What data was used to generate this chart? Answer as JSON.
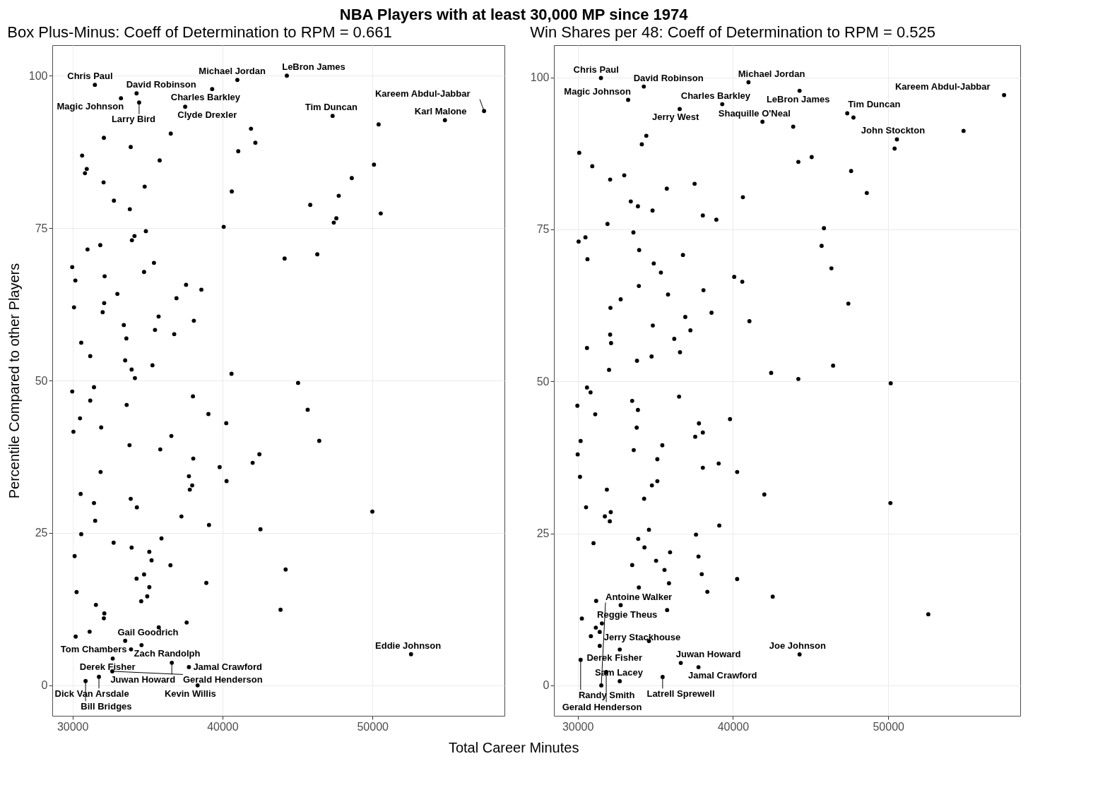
{
  "chart_data": [
    {
      "type": "scatter",
      "title": "NBA Players with at least 30,000 MP since 1974",
      "subtitle": "Box Plus-Minus: Coeff of Determination to RPM = 0.661",
      "xlabel": "Total Career Minutes",
      "ylabel": "Percentile Compared to other Players",
      "color": "#000000",
      "marker": "circle",
      "grid": true,
      "xlim": [
        28650,
        58800
      ],
      "ylim": [
        -5,
        105
      ],
      "xticks": [
        30000,
        40000,
        50000
      ],
      "yticks": [
        0,
        25,
        50,
        75,
        100
      ],
      "x": [
        31490,
        33230,
        34270,
        34440,
        40990,
        39310,
        44290,
        37510,
        47340,
        54830,
        57440,
        41900,
        42190,
        32090,
        33880,
        36550,
        41050,
        30640,
        30950,
        30830,
        35810,
        50410,
        50100,
        48620,
        47750,
        45850,
        47590,
        47420,
        50550,
        40620,
        40080,
        32070,
        34810,
        32760,
        33820,
        34890,
        34130,
        33960,
        31850,
        31000,
        29980,
        30190,
        32140,
        34770,
        35430,
        44140,
        46320,
        32990,
        32110,
        32010,
        30100,
        37570,
        38590,
        36930,
        33420,
        35740,
        38090,
        35500,
        36780,
        33590,
        30580,
        31180,
        33510,
        33940,
        35330,
        40600,
        34160,
        45040,
        29980,
        31430,
        31180,
        33610,
        38030,
        30500,
        31910,
        30060,
        39060,
        40250,
        45680,
        46450,
        36590,
        33800,
        35850,
        38050,
        42460,
        42010,
        39810,
        40270,
        37760,
        37980,
        37820,
        31870,
        30540,
        31430,
        33880,
        34290,
        31510,
        37260,
        39100,
        42530,
        49990,
        30580,
        35930,
        32740,
        33940,
        35120,
        35270,
        30140,
        36530,
        44210,
        34270,
        34770,
        38920,
        35120,
        34980,
        34580,
        30270,
        31560,
        43870,
        32120,
        32090,
        37610,
        35750,
        30210,
        31140,
        33510,
        34600,
        36620,
        37760,
        38340,
        52570,
        32680,
        33900,
        31760,
        32650,
        30870
      ],
      "values": [
        98.5,
        96.3,
        97.1,
        95.6,
        99.3,
        97.8,
        100,
        94.9,
        93.4,
        92.7,
        94.2,
        91.3,
        89.0,
        89.8,
        88.3,
        90.5,
        87.6,
        86.9,
        84.7,
        84.0,
        86.1,
        92.0,
        85.4,
        83.2,
        80.3,
        78.8,
        76.6,
        75.9,
        77.4,
        81.0,
        75.2,
        82.5,
        81.8,
        79.5,
        78.1,
        74.5,
        73.7,
        73.0,
        72.2,
        71.5,
        68.6,
        66.4,
        67.1,
        67.8,
        69.3,
        70.0,
        70.7,
        64.2,
        62.7,
        61.2,
        62.0,
        65.7,
        64.9,
        63.5,
        59.1,
        60.5,
        59.8,
        58.3,
        57.6,
        56.9,
        56.2,
        54.0,
        53.3,
        51.8,
        52.5,
        51.1,
        50.4,
        49.6,
        48.2,
        48.9,
        46.7,
        46.0,
        47.4,
        43.8,
        42.3,
        41.6,
        44.5,
        43.0,
        45.2,
        40.1,
        40.9,
        39.4,
        38.7,
        37.2,
        37.9,
        36.5,
        35.8,
        33.5,
        34.3,
        32.8,
        32.1,
        35.0,
        31.4,
        29.9,
        30.6,
        29.2,
        27.0,
        27.7,
        26.3,
        25.6,
        28.5,
        24.8,
        24.1,
        23.4,
        22.6,
        21.9,
        20.5,
        21.2,
        19.7,
        19.0,
        17.5,
        18.2,
        16.8,
        16.1,
        14.6,
        13.8,
        15.3,
        13.2,
        12.4,
        11.8,
        11.0,
        10.3,
        9.5,
        8.0,
        8.8,
        7.3,
        6.6,
        3.7,
        3.0,
        0.0,
        5.1,
        4.4,
        5.9,
        1.4,
        2.3,
        0.7
      ],
      "annotations": [
        {
          "text": "Chris Paul",
          "x": 31490,
          "y": 98.5
        },
        {
          "text": "Magic Johnson",
          "x": 33230,
          "y": 96.3
        },
        {
          "text": "David Robinson",
          "x": 34270,
          "y": 97.1
        },
        {
          "text": "Larry Bird",
          "x": 34440,
          "y": 95.6
        },
        {
          "text": "Michael Jordan",
          "x": 40990,
          "y": 99.3
        },
        {
          "text": "Charles Barkley",
          "x": 39310,
          "y": 97.8
        },
        {
          "text": "LeBron James",
          "x": 44290,
          "y": 100
        },
        {
          "text": "Clyde Drexler",
          "x": 37510,
          "y": 94.9
        },
        {
          "text": "Tim Duncan",
          "x": 47340,
          "y": 93.4
        },
        {
          "text": "Karl Malone",
          "x": 54830,
          "y": 92.7
        },
        {
          "text": "Kareem Abdul-Jabbar",
          "x": 57440,
          "y": 94.2
        },
        {
          "text": "Gail Goodrich",
          "x": 33510,
          "y": 7.3
        },
        {
          "text": "Zach Randolph",
          "x": 34600,
          "y": 6.6
        },
        {
          "text": "Juwan Howard",
          "x": 36620,
          "y": 3.7
        },
        {
          "text": "Jamal Crawford",
          "x": 37760,
          "y": 3.0
        },
        {
          "text": "Kevin Willis",
          "x": 38340,
          "y": 0.0
        },
        {
          "text": "Eddie Johnson",
          "x": 52570,
          "y": 5.1
        },
        {
          "text": "Derek Fisher",
          "x": 32680,
          "y": 4.4
        },
        {
          "text": "Tom Chambers",
          "x": 33900,
          "y": 5.9
        },
        {
          "text": "Dick Van Arsdale",
          "x": 31760,
          "y": 1.4
        },
        {
          "text": "Gerald Henderson",
          "x": 32650,
          "y": 2.3
        },
        {
          "text": "Bill Bridges",
          "x": 30870,
          "y": 0.7
        }
      ]
    },
    {
      "type": "scatter",
      "subtitle": "Win Shares per 48: Coeff of Determination to RPM = 0.525",
      "color": "#000000",
      "marker": "circle",
      "grid": true,
      "xlim": [
        28470,
        58500
      ],
      "ylim": [
        -5,
        105.3
      ],
      "xticks": [
        30000,
        40000,
        50000
      ],
      "yticks": [
        0,
        25,
        50,
        75,
        100
      ],
      "x": [
        31500,
        34260,
        33250,
        41000,
        44290,
        39310,
        36570,
        47360,
        47760,
        50560,
        57460,
        41900,
        43880,
        54850,
        50410,
        34420,
        34130,
        30100,
        30940,
        32090,
        33000,
        45070,
        44210,
        47610,
        48620,
        35740,
        37530,
        40640,
        33420,
        33880,
        34820,
        38060,
        38930,
        31920,
        33590,
        45860,
        45710,
        30060,
        30500,
        30630,
        33960,
        36780,
        34900,
        35360,
        46340,
        40080,
        40600,
        33940,
        35820,
        38100,
        32770,
        32110,
        47430,
        38620,
        41060,
        36930,
        34840,
        37260,
        32090,
        32150,
        36220,
        30600,
        33820,
        34760,
        36590,
        32020,
        46450,
        42460,
        44210,
        50160,
        30600,
        30830,
        29980,
        31130,
        33510,
        33880,
        36530,
        33800,
        37810,
        38060,
        37570,
        39810,
        30190,
        30000,
        33610,
        35450,
        35130,
        30150,
        38060,
        39080,
        40270,
        34780,
        35130,
        31880,
        34280,
        42020,
        50140,
        30540,
        31750,
        32130,
        32070,
        39120,
        34590,
        37620,
        31020,
        33900,
        34300,
        35950,
        37780,
        35050,
        35590,
        33510,
        37990,
        40270,
        35880,
        33940,
        38350,
        42560,
        31190,
        32770,
        35760,
        52580,
        30270,
        31170,
        31560,
        31420,
        30850,
        34590,
        32710,
        31420,
        36640,
        37780,
        44290,
        30190,
        35470,
        32710,
        31840,
        31520
      ],
      "values": [
        99.9,
        98.5,
        96.3,
        99.2,
        97.8,
        95.6,
        94.8,
        94.1,
        93.4,
        89.8,
        97.1,
        92.7,
        91.9,
        91.2,
        88.3,
        90.4,
        89.0,
        87.6,
        85.4,
        83.2,
        83.9,
        86.9,
        86.1,
        84.6,
        81.0,
        81.7,
        82.5,
        80.3,
        79.6,
        78.8,
        78.1,
        77.3,
        76.6,
        75.9,
        74.5,
        75.2,
        72.3,
        73.0,
        73.7,
        70.1,
        71.6,
        70.8,
        69.4,
        67.9,
        68.6,
        67.2,
        66.4,
        65.7,
        64.3,
        65.0,
        63.5,
        62.1,
        62.8,
        61.3,
        59.9,
        60.6,
        59.2,
        58.4,
        57.7,
        56.3,
        57.0,
        55.5,
        53.4,
        54.1,
        54.8,
        51.9,
        52.6,
        51.4,
        50.4,
        49.7,
        49.0,
        48.2,
        46.0,
        44.6,
        46.8,
        45.3,
        47.5,
        42.4,
        43.1,
        41.6,
        40.9,
        43.8,
        40.2,
        38.0,
        38.7,
        39.5,
        37.2,
        34.3,
        35.8,
        36.5,
        35.1,
        32.9,
        33.6,
        32.2,
        30.7,
        31.4,
        30.0,
        29.3,
        27.8,
        28.5,
        27.0,
        26.3,
        25.6,
        24.8,
        23.4,
        24.1,
        22.7,
        21.9,
        21.2,
        20.5,
        19.0,
        19.8,
        18.3,
        17.5,
        16.8,
        16.1,
        15.4,
        14.6,
        13.9,
        13.2,
        12.4,
        11.7,
        11.0,
        9.5,
        10.2,
        8.8,
        8.1,
        7.3,
        5.9,
        6.5,
        3.7,
        3.0,
        5.1,
        4.2,
        1.4,
        0.7,
        2.2,
        0.0
      ],
      "annotations": [
        {
          "text": "Chris Paul",
          "x": 31500,
          "y": 99.9
        },
        {
          "text": "David Robinson",
          "x": 34260,
          "y": 98.5
        },
        {
          "text": "Magic Johnson",
          "x": 33250,
          "y": 96.3
        },
        {
          "text": "Michael Jordan",
          "x": 41000,
          "y": 99.2
        },
        {
          "text": "LeBron James",
          "x": 44290,
          "y": 97.8
        },
        {
          "text": "Charles Barkley",
          "x": 39310,
          "y": 95.6
        },
        {
          "text": "Jerry West",
          "x": 36570,
          "y": 94.8
        },
        {
          "text": "Tim Duncan",
          "x": 47360,
          "y": 94.1
        },
        {
          "text": "John Stockton",
          "x": 50560,
          "y": 89.8
        },
        {
          "text": "Kareem Abdul-Jabbar",
          "x": 57460,
          "y": 97.1
        },
        {
          "text": "Shaquille O'Neal",
          "x": 41900,
          "y": 92.7
        },
        {
          "text": "Reggie Theus",
          "x": 31560,
          "y": 10.2
        },
        {
          "text": "Derek Fisher",
          "x": 32710,
          "y": 5.9
        },
        {
          "text": "Juwan Howard",
          "x": 36640,
          "y": 3.7
        },
        {
          "text": "Jamal Crawford",
          "x": 37780,
          "y": 3.0
        },
        {
          "text": "Joe Johnson",
          "x": 44290,
          "y": 5.1
        },
        {
          "text": "Randy Smith",
          "x": 30190,
          "y": 4.2
        },
        {
          "text": "Jerry Stackhouse",
          "x": 31420,
          "y": 6.5
        },
        {
          "text": "Latrell Sprewell",
          "x": 35470,
          "y": 1.4
        },
        {
          "text": "Sam Lacey",
          "x": 32710,
          "y": 0.7
        },
        {
          "text": "Gerald Henderson",
          "x": 31840,
          "y": 2.2
        },
        {
          "text": "Antoine Walker",
          "x": 31520,
          "y": 0.0
        }
      ]
    }
  ]
}
